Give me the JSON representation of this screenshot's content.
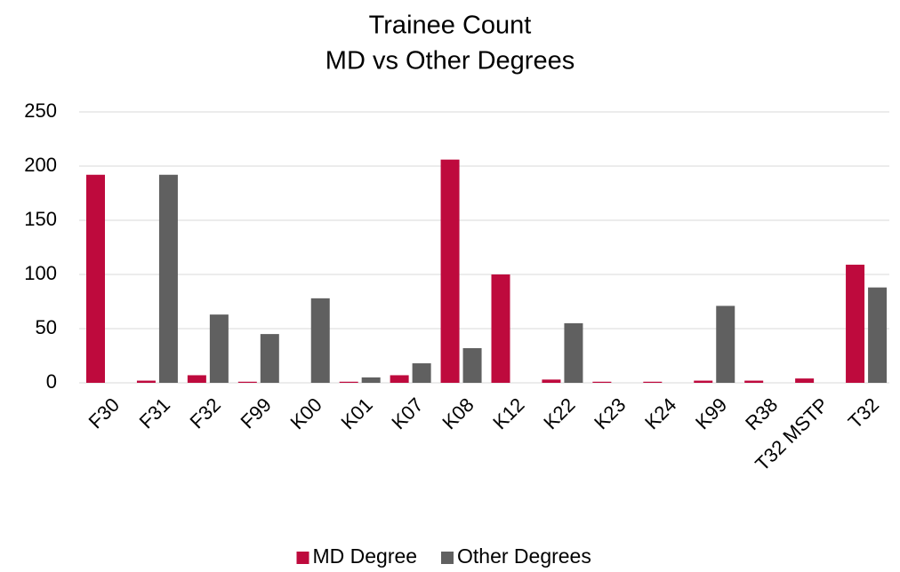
{
  "chart_data": {
    "type": "bar",
    "title": "Trainee Count",
    "subtitle": "MD vs Other Degrees",
    "categories": [
      "F30",
      "F31",
      "F32",
      "F99",
      "K00",
      "K01",
      "K07",
      "K08",
      "K12",
      "K22",
      "K23",
      "K24",
      "K99",
      "R38",
      "T32 MSTP",
      "T32"
    ],
    "series": [
      {
        "name": "MD Degree",
        "color": "#be0a3d",
        "values": [
          192,
          2,
          7,
          1,
          0,
          1,
          7,
          206,
          100,
          3,
          1,
          1,
          2,
          2,
          4,
          109
        ]
      },
      {
        "name": "Other Degrees",
        "color": "#606060",
        "values": [
          0,
          192,
          63,
          45,
          78,
          5,
          18,
          32,
          0,
          55,
          0,
          0,
          71,
          0,
          0,
          88
        ]
      }
    ],
    "ylim": [
      0,
      250
    ],
    "yticks": [
      0,
      50,
      100,
      150,
      200,
      250
    ],
    "grid": true,
    "legend": "bottom"
  }
}
